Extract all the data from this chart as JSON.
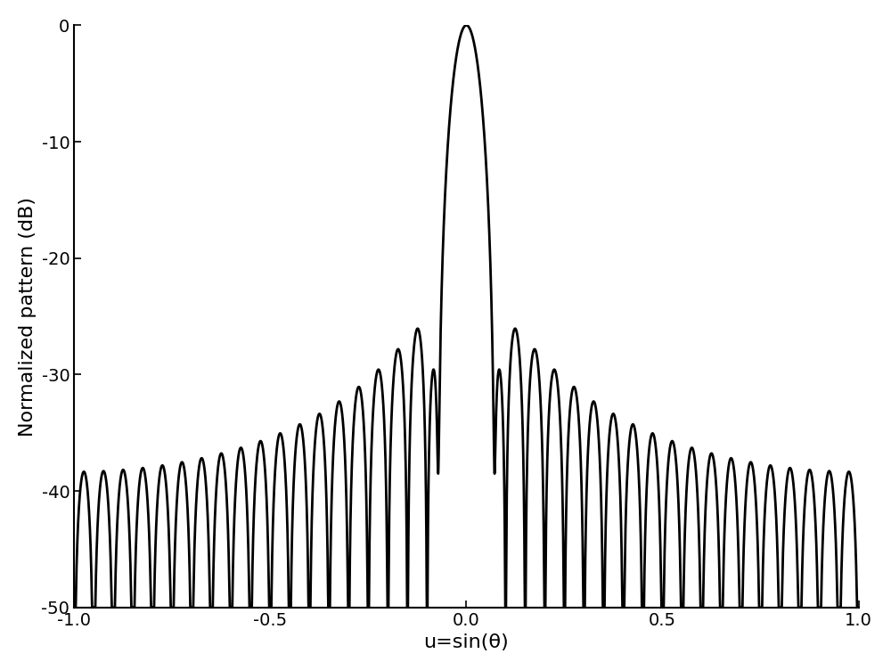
{
  "title": "",
  "xlabel": "u=sin(θ)",
  "ylabel": "Normalized pattern (dB)",
  "xlim": [
    -1.0,
    1.0
  ],
  "ylim": [
    -50,
    0
  ],
  "yticks": [
    0,
    -10,
    -20,
    -30,
    -40,
    -50
  ],
  "xticks": [
    -1.0,
    -0.5,
    0.0,
    0.5,
    1.0
  ],
  "line_color": "#000000",
  "line_width": 2.0,
  "background_color": "#ffffff",
  "figsize": [
    10.0,
    7.52
  ],
  "dpi": 100
}
